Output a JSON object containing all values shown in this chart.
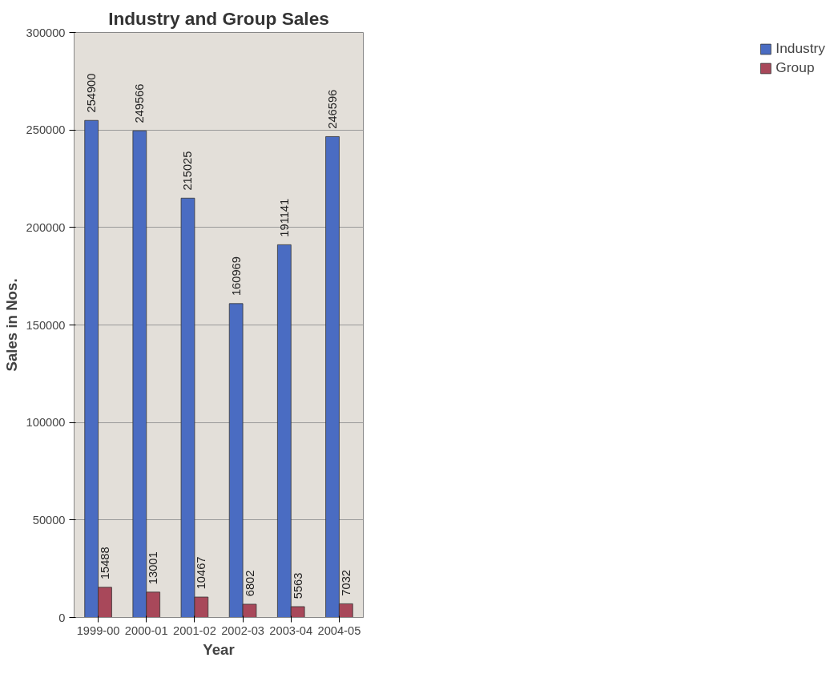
{
  "chart_data": {
    "type": "bar",
    "title": "Industry and Group Sales",
    "xlabel": "Year",
    "ylabel": "Sales in Nos.",
    "categories": [
      "1999-00",
      "2000-01",
      "2001-02",
      "2002-03",
      "2003-04",
      "2004-05"
    ],
    "series": [
      {
        "name": "Industry",
        "color": "#4a6cc2",
        "values": [
          254900,
          249566,
          215025,
          160969,
          191141,
          246596
        ]
      },
      {
        "name": "Group",
        "color": "#a8485a",
        "values": [
          15488,
          13001,
          10467,
          6802,
          5563,
          7032
        ]
      }
    ],
    "ylim": [
      0,
      300000
    ],
    "yticks": [
      0,
      50000,
      100000,
      150000,
      200000,
      250000,
      300000
    ],
    "grid": "y",
    "legend": "right",
    "data_labels": true
  }
}
